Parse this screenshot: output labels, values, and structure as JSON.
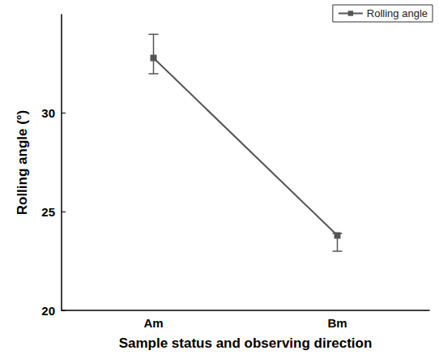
{
  "chart_data": {
    "type": "line",
    "x_label": "Sample status and observing direction",
    "y_label": "Rolling angle (°)",
    "categories": [
      "Am",
      "Bm"
    ],
    "series": [
      {
        "name": "Rolling angle",
        "color": "#555555",
        "marker": "square",
        "line_style": "solid",
        "values": [
          32.8,
          23.8
        ],
        "error_low": [
          32.0,
          23.0
        ],
        "error_high": [
          34.0,
          23.9
        ]
      }
    ],
    "ylim": [
      20,
      35
    ],
    "yticks": [
      20,
      25,
      30
    ],
    "grid": false,
    "legend": "top-right"
  }
}
